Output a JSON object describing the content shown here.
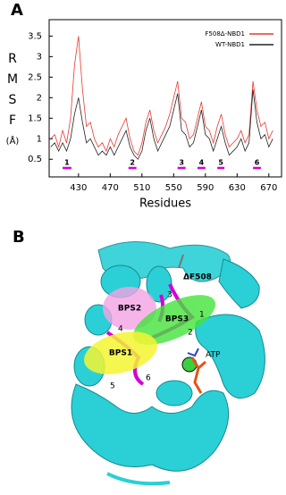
{
  "chart_data": {
    "type": "line",
    "panel_label": "A",
    "xlabel": "Residues",
    "ylabel_lines": [
      "R",
      "M",
      "S",
      "F",
      "(Å)"
    ],
    "x": [
      395,
      400,
      405,
      410,
      415,
      420,
      425,
      430,
      435,
      440,
      445,
      450,
      455,
      460,
      465,
      470,
      475,
      480,
      485,
      490,
      495,
      500,
      505,
      510,
      515,
      520,
      525,
      530,
      535,
      540,
      545,
      550,
      555,
      560,
      565,
      570,
      575,
      580,
      585,
      590,
      595,
      600,
      605,
      610,
      615,
      620,
      625,
      630,
      635,
      640,
      645,
      650,
      655,
      660,
      665,
      670,
      675
    ],
    "series": [
      {
        "name": "F508Δ-NBD1",
        "color": "#e8392f",
        "values": [
          1.0,
          1.1,
          0.8,
          1.2,
          0.9,
          1.5,
          2.8,
          3.5,
          2.2,
          1.3,
          1.4,
          1.0,
          0.8,
          0.9,
          0.7,
          1.0,
          0.8,
          1.1,
          1.3,
          1.5,
          1.0,
          0.7,
          0.6,
          0.9,
          1.4,
          1.7,
          1.2,
          0.9,
          1.1,
          1.3,
          1.6,
          2.0,
          2.4,
          1.5,
          1.4,
          1.0,
          1.1,
          1.5,
          1.9,
          1.3,
          1.2,
          0.9,
          1.3,
          1.6,
          1.1,
          0.8,
          0.9,
          1.0,
          1.2,
          0.9,
          1.1,
          2.4,
          1.7,
          1.3,
          1.4,
          1.0,
          1.2
        ]
      },
      {
        "name": "WT-NBD1",
        "color": "#222222",
        "values": [
          0.8,
          0.9,
          0.7,
          0.9,
          0.7,
          1.0,
          1.6,
          2.0,
          1.4,
          0.9,
          1.0,
          0.8,
          0.6,
          0.7,
          0.6,
          0.8,
          0.6,
          0.8,
          1.0,
          1.2,
          0.8,
          0.6,
          0.5,
          0.7,
          1.2,
          1.5,
          1.0,
          0.7,
          0.9,
          1.1,
          1.3,
          1.7,
          2.1,
          1.2,
          1.1,
          0.8,
          0.9,
          1.3,
          1.7,
          1.1,
          1.0,
          0.7,
          1.0,
          1.3,
          0.9,
          0.6,
          0.7,
          0.8,
          1.0,
          0.7,
          0.9,
          2.2,
          1.4,
          1.0,
          1.1,
          0.8,
          1.0
        ]
      }
    ],
    "regions": [
      {
        "label": "1",
        "start": 410,
        "end": 421
      },
      {
        "label": "2",
        "start": 493,
        "end": 503
      },
      {
        "label": "3",
        "start": 555,
        "end": 565
      },
      {
        "label": "4",
        "start": 580,
        "end": 590
      },
      {
        "label": "5",
        "start": 605,
        "end": 614
      },
      {
        "label": "6",
        "start": 650,
        "end": 660
      }
    ],
    "region_color": "#d400d4",
    "xlim": [
      393,
      686
    ],
    "ylim": [
      0.07,
      3.9
    ],
    "xticks": [
      430,
      470,
      510,
      550,
      590,
      630,
      670
    ],
    "yticks": [
      0.5,
      1,
      1.5,
      2,
      2.5,
      3,
      3.5
    ],
    "legend": "upper right"
  },
  "panel_b": {
    "panel_label": "B",
    "labels": {
      "bps1": "BPS1",
      "bps2": "BPS2",
      "bps3": "BPS3",
      "mutation": "ΔF508",
      "atp": "ATP"
    },
    "strand_numbers": [
      "1",
      "2",
      "3",
      "4",
      "5",
      "6"
    ]
  }
}
